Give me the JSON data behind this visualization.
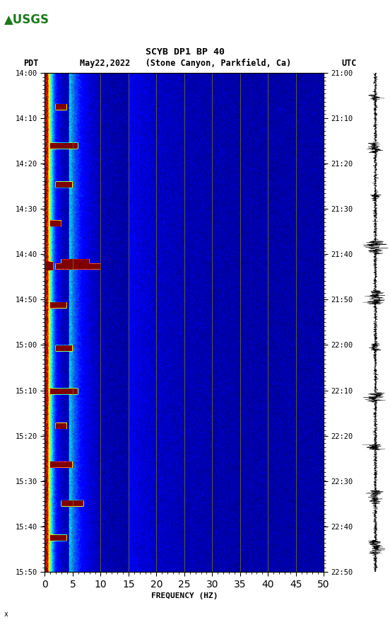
{
  "title_line1": "SCYB DP1 BP 40",
  "xlabel": "FREQUENCY (HZ)",
  "freq_min": 0,
  "freq_max": 50,
  "freq_ticks": [
    0,
    5,
    10,
    15,
    20,
    25,
    30,
    35,
    40,
    45,
    50
  ],
  "pdt_ticks": [
    "14:00",
    "14:10",
    "14:20",
    "14:30",
    "14:40",
    "14:50",
    "15:00",
    "15:10",
    "15:20",
    "15:30",
    "15:40",
    "15:50"
  ],
  "utc_ticks": [
    "21:00",
    "21:10",
    "21:20",
    "21:30",
    "21:40",
    "21:50",
    "22:00",
    "22:10",
    "22:20",
    "22:30",
    "22:40",
    "22:50"
  ],
  "vline_freqs": [
    5,
    10,
    15,
    20,
    25,
    30,
    35,
    40,
    45
  ],
  "vline_color": "#808000",
  "fig_bg": "#ffffff",
  "spec_bg": "#00008B",
  "usgs_green": "#1a7a1a"
}
